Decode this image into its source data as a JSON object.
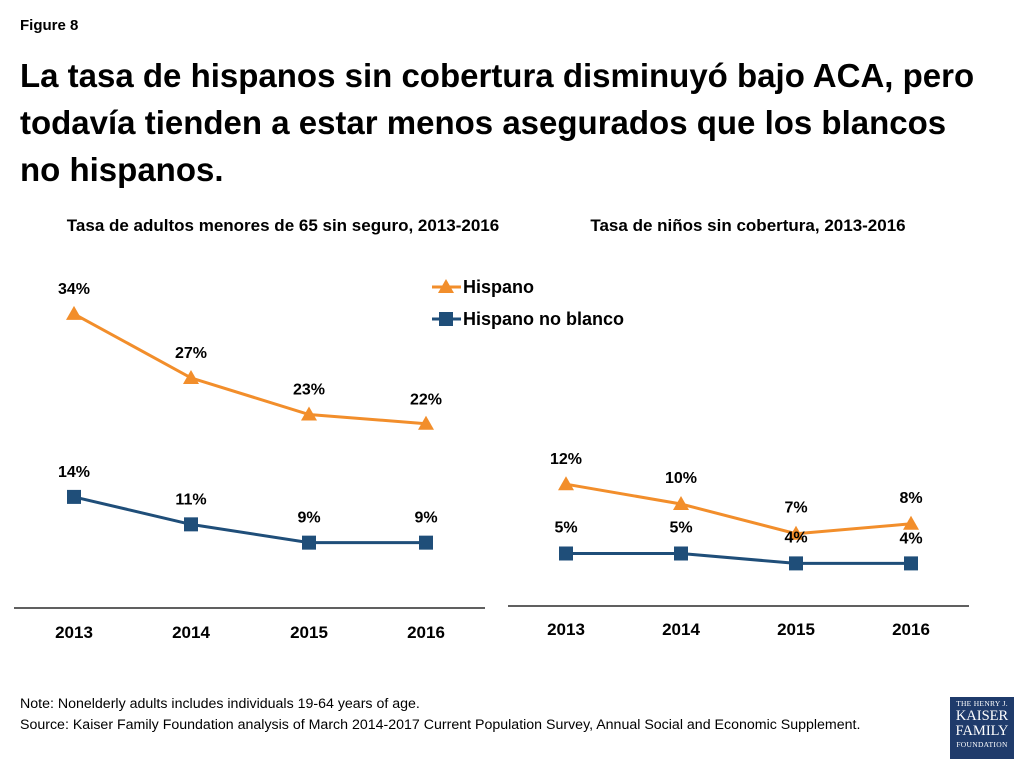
{
  "figure_label": "Figure 8",
  "title": "La tasa de hispanos sin cobertura disminuyó bajo ACA, pero todavía tienden a estar menos asegurados que los blancos no hispanos.",
  "colors": {
    "hispanic": "#f28e2b",
    "non_hispanic_white": "#1f4e79",
    "axis": "#000000"
  },
  "legend": {
    "items": [
      {
        "label": "Hispano",
        "marker": "triangle",
        "color": "#f28e2b"
      },
      {
        "label": "Hispano no blanco",
        "marker": "square",
        "color": "#1f4e79"
      }
    ]
  },
  "chart_data": [
    {
      "type": "line",
      "title": "Tasa de adultos menores de 65 sin seguro, 2013-2016",
      "categories": [
        "2013",
        "2014",
        "2015",
        "2016"
      ],
      "ylim": [
        0,
        40
      ],
      "series": [
        {
          "name": "Hispano",
          "values": [
            34,
            27,
            23,
            22
          ],
          "labels": [
            "34%",
            "27%",
            "23%",
            "22%"
          ]
        },
        {
          "name": "Hispano no blanco",
          "values": [
            14,
            11,
            9,
            9
          ],
          "labels": [
            "14%",
            "11%",
            "9%",
            "9%"
          ]
        }
      ]
    },
    {
      "type": "line",
      "title": "Tasa de niños sin cobertura, 2013-2016",
      "categories": [
        "2013",
        "2014",
        "2015",
        "2016"
      ],
      "ylim": [
        0,
        40
      ],
      "series": [
        {
          "name": "Hispano",
          "values": [
            12,
            10,
            7,
            8
          ],
          "labels": [
            "12%",
            "10%",
            "7%",
            "8%"
          ]
        },
        {
          "name": "Hispano no blanco",
          "values": [
            5,
            5,
            4,
            4
          ],
          "labels": [
            "5%",
            "5%",
            "4%",
            "4%"
          ]
        }
      ]
    }
  ],
  "footer": {
    "note": "Note: Nonelderly adults includes individuals 19-64 years of age.",
    "source": "Source: Kaiser Family Foundation analysis of March 2014-2017 Current Population Survey, Annual Social and Economic Supplement."
  },
  "logo": {
    "line1": "THE HENRY J.",
    "line2": "KAISER",
    "line3": "FAMILY",
    "line4": "FOUNDATION"
  }
}
